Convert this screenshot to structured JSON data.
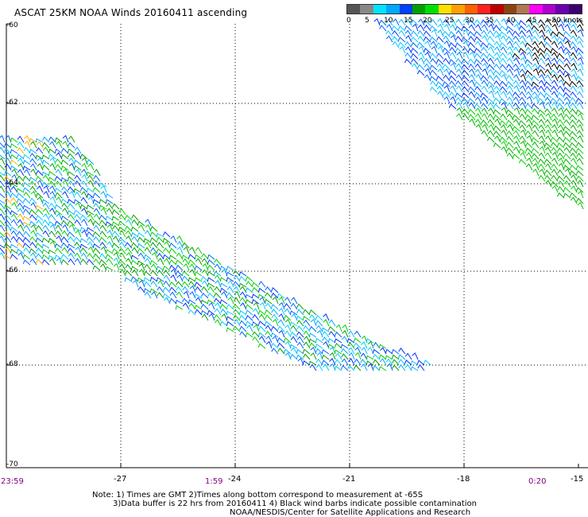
{
  "title": "ASCAT 25KM NOAA Winds 20160411 ascending",
  "legend": {
    "labels": [
      "0",
      "5",
      "10",
      "15",
      "20",
      "25",
      "30",
      "35",
      "40",
      "45",
      ">50 knots"
    ],
    "colors": [
      "#555555",
      "#888888",
      "#00e5ff",
      "#00a8ff",
      "#0040ff",
      "#00a000",
      "#00e000",
      "#ffe000",
      "#ffa000",
      "#ff6000",
      "#ff2020",
      "#c00000",
      "#8b4513",
      "#b07850",
      "#ff00ff",
      "#b000d0",
      "#6a00b0",
      "#3c0070"
    ]
  },
  "axes": {
    "lat_labels": [
      "-60",
      "-62",
      "-64",
      "-66",
      "-68",
      "-70"
    ],
    "lon_labels": [
      "-27",
      "-24",
      "-21",
      "-18",
      "-15"
    ]
  },
  "times": [
    "23:59",
    "1:59",
    "0:20"
  ],
  "notes": [
    "Note: 1) Times are GMT 2)Times along bottom correspond to measurement at -65S",
    "3)Data buffer is 22 hrs from 20160411 4) Black wind barbs indicate possible contamination",
    "NOAA/NESDIS/Center for Satellite Applications and Research"
  ]
}
